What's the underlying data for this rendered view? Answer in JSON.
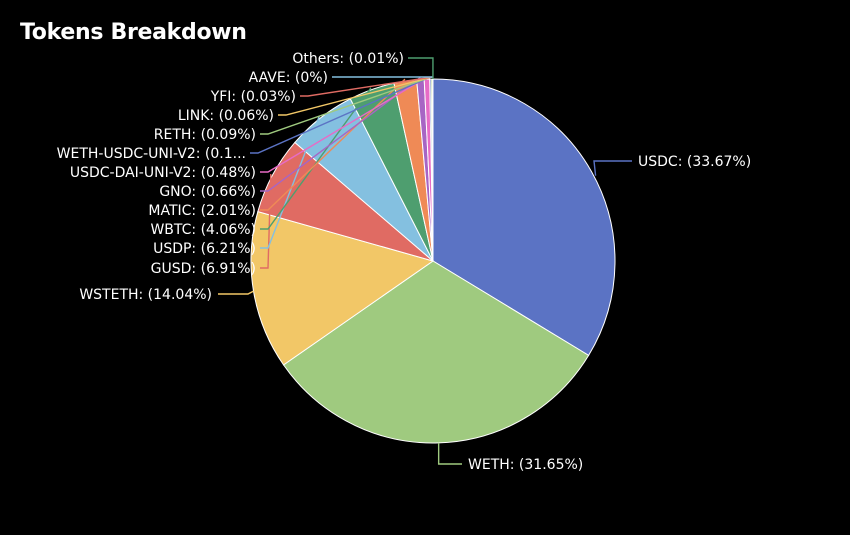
{
  "chart_data": {
    "type": "pie",
    "title": "Tokens Breakdown",
    "slices": [
      {
        "label": "USDC: (33.67%)",
        "value": 33.67,
        "color": "#5b73c4"
      },
      {
        "label": "WETH: (31.65%)",
        "value": 31.65,
        "color": "#9fca7f"
      },
      {
        "label": "WSTETH: (14.04%)",
        "value": 14.04,
        "color": "#f2c767"
      },
      {
        "label": "GUSD: (6.91%)",
        "value": 6.91,
        "color": "#e06b63"
      },
      {
        "label": "USDP: (6.21%)",
        "value": 6.21,
        "color": "#84c0e0"
      },
      {
        "label": "WBTC: (4.06%)",
        "value": 4.06,
        "color": "#4e9e6f"
      },
      {
        "label": "MATIC: (2.01%)",
        "value": 2.01,
        "color": "#ef8a56"
      },
      {
        "label": "GNO: (0.66%)",
        "value": 0.66,
        "color": "#a765c4"
      },
      {
        "label": "USDC-DAI-UNI-V2: (0.48%)",
        "value": 0.48,
        "color": "#e76bc6"
      },
      {
        "label": "WETH-USDC-UNI-V2: (0.1...",
        "value": 0.1,
        "color": "#5b73c4"
      },
      {
        "label": "RETH: (0.09%)",
        "value": 0.09,
        "color": "#9fca7f"
      },
      {
        "label": "LINK: (0.06%)",
        "value": 0.06,
        "color": "#f2c767"
      },
      {
        "label": "YFI: (0.03%)",
        "value": 0.03,
        "color": "#e06b63"
      },
      {
        "label": "AAVE: (0%)",
        "value": 0.0,
        "color": "#84c0e0"
      },
      {
        "label": "Others: (0.01%)",
        "value": 0.01,
        "color": "#4e9e6f"
      }
    ]
  }
}
